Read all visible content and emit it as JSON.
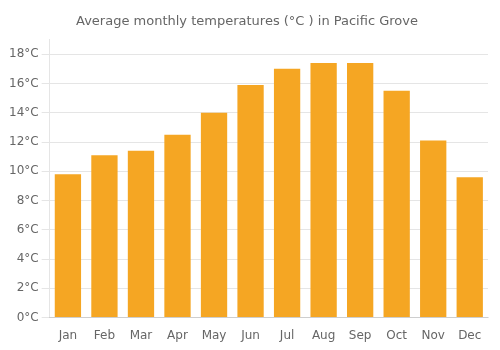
{
  "chart_data": {
    "type": "bar",
    "title": "Average monthly temperatures (°C ) in Pacific Grove",
    "categories": [
      "Jan",
      "Feb",
      "Mar",
      "Apr",
      "May",
      "Jun",
      "Jul",
      "Aug",
      "Sep",
      "Oct",
      "Nov",
      "Dec"
    ],
    "values": [
      9.8,
      11.1,
      11.4,
      12.5,
      14.0,
      15.9,
      17.0,
      17.4,
      17.4,
      15.5,
      12.1,
      9.6
    ],
    "color": "#F5A623",
    "ylim": [
      0,
      19
    ],
    "yticks": [
      {
        "value": 0,
        "label": "0°C"
      },
      {
        "value": 2,
        "label": "2°C"
      },
      {
        "value": 4,
        "label": "4°C"
      },
      {
        "value": 6,
        "label": "6°C"
      },
      {
        "value": 8,
        "label": "8°C"
      },
      {
        "value": 10,
        "label": "10°C"
      },
      {
        "value": 12,
        "label": "12°C"
      },
      {
        "value": 14,
        "label": "14°C"
      },
      {
        "value": 16,
        "label": "16°C"
      },
      {
        "value": 18,
        "label": "18°C"
      }
    ],
    "grid": true
  }
}
